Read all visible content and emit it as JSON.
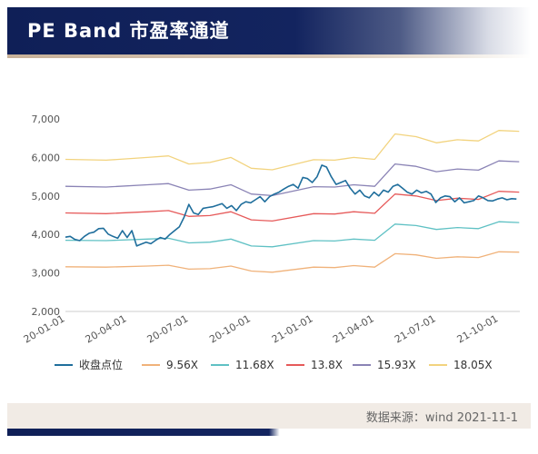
{
  "header": {
    "title": "PE Band 市盈率通道"
  },
  "footer": {
    "source": "数据来源：wind 2021-11-1"
  },
  "chart_data": {
    "type": "line",
    "title": "",
    "xlabel": "",
    "ylabel": "",
    "ylim": [
      2000,
      7000
    ],
    "y_ticks": [
      2000,
      3000,
      4000,
      5000,
      6000,
      7000
    ],
    "y_tick_labels": [
      "2,000",
      "3,000",
      "4,000",
      "5,000",
      "6,000",
      "7,000"
    ],
    "x_range": [
      "2020-01-01",
      "2021-11-01"
    ],
    "x_ticks": [
      {
        "date": "2020-01-01",
        "label": "20-01-01"
      },
      {
        "date": "2020-04-01",
        "label": "20-04-01"
      },
      {
        "date": "2020-07-01",
        "label": "20-07-01"
      },
      {
        "date": "2020-10-01",
        "label": "20-10-01"
      },
      {
        "date": "2021-01-01",
        "label": "21-01-01"
      },
      {
        "date": "2021-04-01",
        "label": "21-04-01"
      },
      {
        "date": "2021-07-01",
        "label": "21-07-01"
      },
      {
        "date": "2021-10-01",
        "label": "21-10-01"
      }
    ],
    "grid": false,
    "legend_position": "bottom",
    "series": [
      {
        "name": "收盘点位",
        "color": "#1f6e9c",
        "dates": [
          "2020-01-01",
          "2020-01-08",
          "2020-01-15",
          "2020-01-22",
          "2020-01-29",
          "2020-02-05",
          "2020-02-12",
          "2020-02-19",
          "2020-02-26",
          "2020-03-04",
          "2020-03-11",
          "2020-03-18",
          "2020-03-25",
          "2020-04-01",
          "2020-04-08",
          "2020-04-15",
          "2020-04-22",
          "2020-04-29",
          "2020-05-06",
          "2020-05-13",
          "2020-05-20",
          "2020-05-27",
          "2020-06-03",
          "2020-06-10",
          "2020-06-17",
          "2020-06-24",
          "2020-07-01",
          "2020-07-08",
          "2020-07-15",
          "2020-07-22",
          "2020-07-29",
          "2020-08-05",
          "2020-08-12",
          "2020-08-19",
          "2020-08-26",
          "2020-09-02",
          "2020-09-09",
          "2020-09-16",
          "2020-09-23",
          "2020-09-30",
          "2020-10-07",
          "2020-10-14",
          "2020-10-21",
          "2020-10-28",
          "2020-11-04",
          "2020-11-11",
          "2020-11-18",
          "2020-11-25",
          "2020-12-02",
          "2020-12-09",
          "2020-12-16",
          "2020-12-23",
          "2020-12-30",
          "2021-01-06",
          "2021-01-13",
          "2021-01-20",
          "2021-01-27",
          "2021-02-03",
          "2021-02-10",
          "2021-02-17",
          "2021-02-24",
          "2021-03-03",
          "2021-03-10",
          "2021-03-17",
          "2021-03-24",
          "2021-03-31",
          "2021-04-07",
          "2021-04-14",
          "2021-04-21",
          "2021-04-28",
          "2021-05-05",
          "2021-05-12",
          "2021-05-19",
          "2021-05-26",
          "2021-06-02",
          "2021-06-09",
          "2021-06-16",
          "2021-06-23",
          "2021-06-30",
          "2021-07-07",
          "2021-07-14",
          "2021-07-21",
          "2021-07-28",
          "2021-08-04",
          "2021-08-11",
          "2021-08-18",
          "2021-08-25",
          "2021-09-01",
          "2021-09-08",
          "2021-09-15",
          "2021-09-22",
          "2021-09-29",
          "2021-10-06",
          "2021-10-13",
          "2021-10-20",
          "2021-10-27"
        ],
        "values": [
          3930,
          3950,
          3870,
          3840,
          3950,
          4030,
          4060,
          4150,
          4160,
          4010,
          3950,
          3900,
          4100,
          3920,
          4100,
          3700,
          3750,
          3800,
          3760,
          3850,
          3920,
          3880,
          4000,
          4100,
          4200,
          4450,
          4780,
          4560,
          4520,
          4680,
          4700,
          4720,
          4760,
          4800,
          4680,
          4750,
          4620,
          4780,
          4850,
          4820,
          4900,
          4980,
          4850,
          4980,
          5050,
          5100,
          5180,
          5250,
          5300,
          5200,
          5480,
          5450,
          5350,
          5500,
          5800,
          5750,
          5500,
          5300,
          5350,
          5400,
          5200,
          5050,
          5150,
          5000,
          4950,
          5100,
          5000,
          5150,
          5100,
          5250,
          5300,
          5200,
          5100,
          5050,
          5150,
          5080,
          5120,
          5050,
          4830,
          4950,
          5000,
          4980,
          4850,
          4950,
          4820,
          4850,
          4880,
          5000,
          4950,
          4880,
          4870,
          4920,
          4950,
          4900,
          4930,
          4920
        ]
      },
      {
        "name": "9.56X",
        "color": "#f0b27a",
        "dates": [
          "2020-01-01",
          "2020-03-01",
          "2020-05-01",
          "2020-06-01",
          "2020-07-01",
          "2020-08-01",
          "2020-09-01",
          "2020-10-01",
          "2020-11-01",
          "2021-01-01",
          "2021-02-01",
          "2021-03-01",
          "2021-04-01",
          "2021-05-01",
          "2021-06-01",
          "2021-07-01",
          "2021-08-01",
          "2021-09-01",
          "2021-10-01",
          "2021-10-31"
        ],
        "values": [
          3160,
          3150,
          3180,
          3200,
          3100,
          3110,
          3180,
          3050,
          3020,
          3150,
          3140,
          3190,
          3150,
          3500,
          3470,
          3380,
          3420,
          3400,
          3550,
          3540
        ]
      },
      {
        "name": "11.68X",
        "color": "#5fc1c4",
        "dates": [
          "2020-01-01",
          "2020-03-01",
          "2020-05-01",
          "2020-06-01",
          "2020-07-01",
          "2020-08-01",
          "2020-09-01",
          "2020-10-01",
          "2020-11-01",
          "2021-01-01",
          "2021-02-01",
          "2021-03-01",
          "2021-04-01",
          "2021-05-01",
          "2021-06-01",
          "2021-07-01",
          "2021-08-01",
          "2021-09-01",
          "2021-10-01",
          "2021-10-31"
        ],
        "values": [
          3850,
          3840,
          3880,
          3900,
          3780,
          3800,
          3880,
          3700,
          3680,
          3840,
          3830,
          3880,
          3850,
          4270,
          4230,
          4130,
          4180,
          4150,
          4330,
          4310
        ]
      },
      {
        "name": "13.8X",
        "color": "#e65a5a",
        "dates": [
          "2020-01-01",
          "2020-03-01",
          "2020-05-01",
          "2020-06-01",
          "2020-07-01",
          "2020-08-01",
          "2020-09-01",
          "2020-10-01",
          "2020-11-01",
          "2021-01-01",
          "2021-02-01",
          "2021-03-01",
          "2021-04-01",
          "2021-05-01",
          "2021-06-01",
          "2021-07-01",
          "2021-08-01",
          "2021-09-01",
          "2021-10-01",
          "2021-10-31"
        ],
        "values": [
          4560,
          4540,
          4590,
          4620,
          4470,
          4490,
          4590,
          4380,
          4350,
          4540,
          4530,
          4590,
          4550,
          5050,
          5000,
          4880,
          4940,
          4910,
          5120,
          5100
        ]
      },
      {
        "name": "15.93X",
        "color": "#8a83b5",
        "dates": [
          "2020-01-01",
          "2020-03-01",
          "2020-05-01",
          "2020-06-01",
          "2020-07-01",
          "2020-08-01",
          "2020-09-01",
          "2020-10-01",
          "2020-11-01",
          "2021-01-01",
          "2021-02-01",
          "2021-03-01",
          "2021-04-01",
          "2021-05-01",
          "2021-06-01",
          "2021-07-01",
          "2021-08-01",
          "2021-09-01",
          "2021-10-01",
          "2021-10-31"
        ],
        "values": [
          5250,
          5230,
          5290,
          5320,
          5150,
          5180,
          5290,
          5050,
          5010,
          5240,
          5230,
          5290,
          5250,
          5830,
          5770,
          5630,
          5700,
          5670,
          5910,
          5890
        ]
      },
      {
        "name": "18.05X",
        "color": "#f2d37e",
        "dates": [
          "2020-01-01",
          "2020-03-01",
          "2020-05-01",
          "2020-06-01",
          "2020-07-01",
          "2020-08-01",
          "2020-09-01",
          "2020-10-01",
          "2020-11-01",
          "2021-01-01",
          "2021-02-01",
          "2021-03-01",
          "2021-04-01",
          "2021-05-01",
          "2021-06-01",
          "2021-07-01",
          "2021-08-01",
          "2021-09-01",
          "2021-10-01",
          "2021-10-31"
        ],
        "values": [
          5950,
          5930,
          6000,
          6040,
          5830,
          5870,
          6000,
          5720,
          5680,
          5940,
          5930,
          6000,
          5950,
          6610,
          6540,
          6380,
          6460,
          6430,
          6700,
          6680
        ]
      }
    ]
  }
}
